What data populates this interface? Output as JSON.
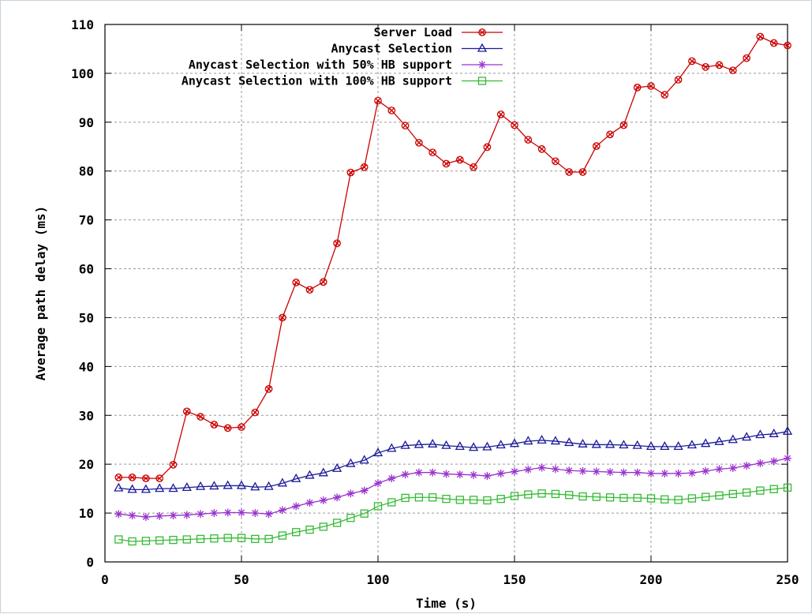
{
  "chart_data": {
    "type": "line",
    "title": "",
    "xlabel": "Time (s)",
    "ylabel": "Average path delay (ms)",
    "xlim": [
      0,
      250
    ],
    "ylim": [
      0,
      110
    ],
    "xticks": [
      0,
      50,
      100,
      150,
      200,
      250
    ],
    "yticks": [
      0,
      10,
      20,
      30,
      40,
      50,
      60,
      70,
      80,
      90,
      100,
      110
    ],
    "grid": true,
    "legend_position": "top-right",
    "x": [
      5,
      10,
      15,
      20,
      25,
      30,
      35,
      40,
      45,
      50,
      55,
      60,
      65,
      70,
      75,
      80,
      85,
      90,
      95,
      100,
      105,
      110,
      115,
      120,
      125,
      130,
      135,
      140,
      145,
      150,
      155,
      160,
      165,
      170,
      175,
      180,
      185,
      190,
      195,
      200,
      205,
      210,
      215,
      220,
      225,
      230,
      235,
      240,
      245,
      250
    ],
    "series": [
      {
        "name": "Server Load",
        "color": "#cc0000",
        "marker": "circle-cross",
        "values": [
          17.3,
          17.3,
          17.1,
          17.1,
          19.9,
          30.8,
          29.7,
          28.1,
          27.4,
          27.6,
          30.6,
          35.4,
          50,
          57.2,
          55.7,
          57.3,
          65.2,
          79.7,
          80.8,
          94.4,
          92.4,
          89.3,
          85.8,
          83.8,
          81.5,
          82.3,
          80.8,
          84.9,
          91.6,
          89.4,
          86.4,
          84.5,
          82,
          79.8,
          79.8,
          85.1,
          87.5,
          89.4,
          97.1,
          97.4,
          95.6,
          98.7,
          102.5,
          101.3,
          101.7,
          100.6,
          103.1,
          107.5,
          106.2,
          105.7
        ]
      },
      {
        "name": "Anycast Selection",
        "color": "#1a1a99",
        "marker": "triangle",
        "values": [
          15.1,
          14.8,
          14.8,
          15.0,
          15.0,
          15.2,
          15.4,
          15.5,
          15.6,
          15.6,
          15.3,
          15.4,
          16.1,
          17.0,
          17.7,
          18.2,
          19.1,
          20.1,
          20.8,
          22.3,
          23.2,
          23.8,
          24.0,
          24.1,
          23.8,
          23.6,
          23.4,
          23.5,
          23.9,
          24.2,
          24.7,
          24.9,
          24.7,
          24.4,
          24.1,
          24.0,
          24.0,
          23.9,
          23.8,
          23.6,
          23.6,
          23.6,
          23.9,
          24.2,
          24.6,
          25.0,
          25.5,
          26.0,
          26.2,
          26.7
        ]
      },
      {
        "name": "Anycast Selection with 50% HB support",
        "color": "#9933cc",
        "marker": "star",
        "values": [
          9.8,
          9.5,
          9.2,
          9.4,
          9.5,
          9.6,
          9.8,
          10.0,
          10.1,
          10.1,
          10.0,
          9.8,
          10.6,
          11.4,
          12.1,
          12.6,
          13.2,
          14.0,
          14.6,
          16.1,
          17.1,
          17.9,
          18.3,
          18.3,
          18.0,
          17.9,
          17.8,
          17.6,
          18.1,
          18.5,
          18.9,
          19.3,
          19.0,
          18.7,
          18.6,
          18.5,
          18.4,
          18.3,
          18.3,
          18.1,
          18.1,
          18.1,
          18.2,
          18.6,
          19.0,
          19.2,
          19.7,
          20.2,
          20.6,
          21.2
        ]
      },
      {
        "name": "Anycast Selection with 100% HB support",
        "color": "#33bb33",
        "marker": "square",
        "values": [
          4.6,
          4.2,
          4.3,
          4.4,
          4.5,
          4.6,
          4.7,
          4.8,
          4.9,
          4.9,
          4.7,
          4.7,
          5.4,
          6.1,
          6.6,
          7.2,
          8.0,
          9.0,
          9.9,
          11.4,
          12.2,
          13.1,
          13.2,
          13.2,
          12.9,
          12.7,
          12.7,
          12.6,
          12.9,
          13.5,
          13.8,
          14.0,
          13.9,
          13.7,
          13.4,
          13.3,
          13.2,
          13.1,
          13.1,
          13.0,
          12.8,
          12.7,
          13.0,
          13.3,
          13.6,
          13.9,
          14.2,
          14.6,
          14.9,
          15.2
        ]
      }
    ]
  }
}
